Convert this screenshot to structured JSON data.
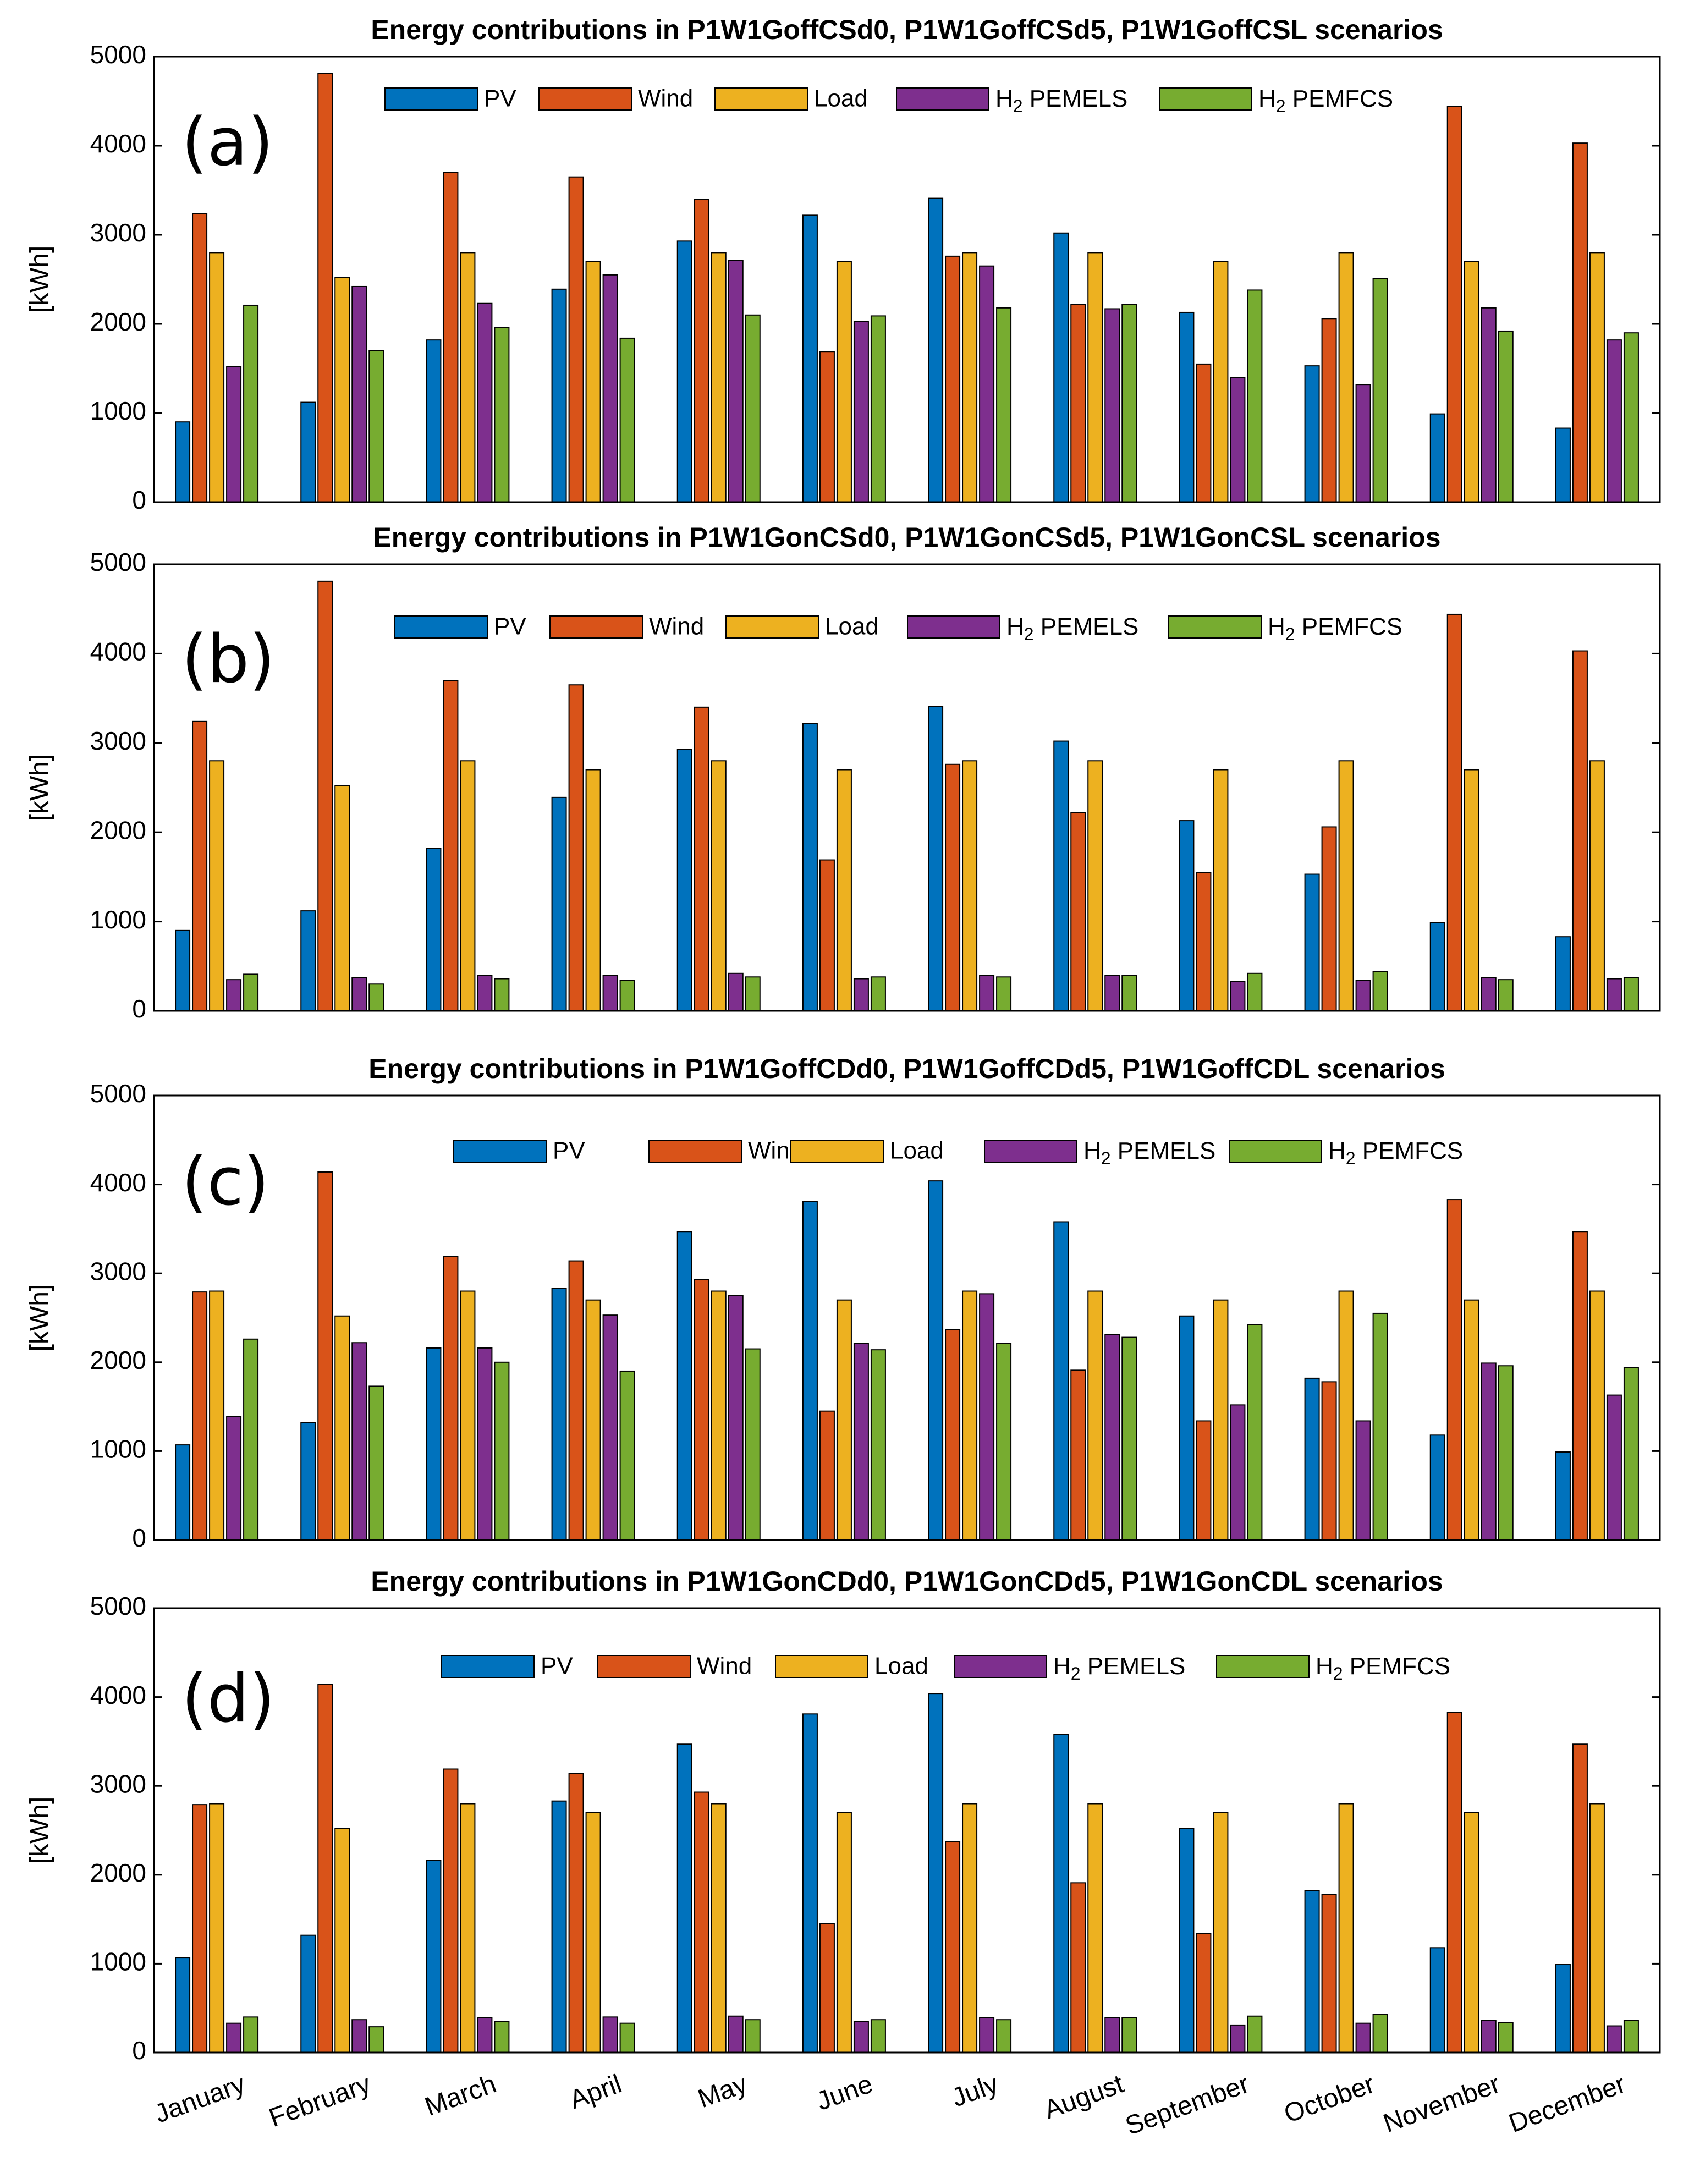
{
  "colors": {
    "PV": "#0072BD",
    "Wind": "#D95319",
    "Load": "#EDB120",
    "H2 PEMELS": "#7E2F8E",
    "H2 PEMFCS": "#77AC30"
  },
  "chart_data": [
    {
      "type": "bar",
      "panel": "(a)",
      "title": "Energy contributions in P1W1GoffCSd0, P1W1GoffCSd5, P1W1GoffCSL scenarios",
      "ylabel": "[kWh]",
      "ylim": [
        0,
        5000
      ],
      "yticks": [
        "0",
        "1000",
        "2000",
        "3000",
        "4000",
        "5000"
      ],
      "legend": "top",
      "categories": [
        "January",
        "February",
        "March",
        "April",
        "May",
        "June",
        "July",
        "August",
        "September",
        "October",
        "November",
        "December"
      ],
      "series": [
        {
          "name": "PV",
          "values": [
            900,
            1120,
            1820,
            2390,
            2930,
            3220,
            3410,
            3020,
            2130,
            1530,
            990,
            830
          ]
        },
        {
          "name": "Wind",
          "values": [
            3240,
            4810,
            3700,
            3650,
            3400,
            1690,
            2760,
            2220,
            1550,
            2060,
            4440,
            4030
          ]
        },
        {
          "name": "Load",
          "values": [
            2800,
            2520,
            2800,
            2700,
            2800,
            2700,
            2800,
            2800,
            2700,
            2800,
            2700,
            2800
          ]
        },
        {
          "name": "H2 PEMELS",
          "values": [
            1520,
            2420,
            2230,
            2550,
            2710,
            2030,
            2650,
            2170,
            1400,
            1320,
            2180,
            1820
          ]
        },
        {
          "name": "H2 PEMFCS",
          "values": [
            2210,
            1700,
            1960,
            1840,
            2100,
            2090,
            2180,
            2220,
            2380,
            2510,
            1920,
            1900
          ]
        }
      ]
    },
    {
      "type": "bar",
      "panel": "(b)",
      "title": "Energy contributions in P1W1GonCSd0, P1W1GonCSd5, P1W1GonCSL scenarios",
      "ylabel": "[kWh]",
      "ylim": [
        0,
        5000
      ],
      "yticks": [
        "0",
        "1000",
        "2000",
        "3000",
        "4000",
        "5000"
      ],
      "legend": "top",
      "categories": [
        "January",
        "February",
        "March",
        "April",
        "May",
        "June",
        "July",
        "August",
        "September",
        "October",
        "November",
        "December"
      ],
      "series": [
        {
          "name": "PV",
          "values": [
            900,
            1120,
            1820,
            2390,
            2930,
            3220,
            3410,
            3020,
            2130,
            1530,
            990,
            830
          ]
        },
        {
          "name": "Wind",
          "values": [
            3240,
            4810,
            3700,
            3650,
            3400,
            1690,
            2760,
            2220,
            1550,
            2060,
            4440,
            4030
          ]
        },
        {
          "name": "Load",
          "values": [
            2800,
            2520,
            2800,
            2700,
            2800,
            2700,
            2800,
            2800,
            2700,
            2800,
            2700,
            2800
          ]
        },
        {
          "name": "H2 PEMELS",
          "values": [
            350,
            370,
            400,
            400,
            420,
            360,
            400,
            400,
            330,
            340,
            370,
            360
          ]
        },
        {
          "name": "H2 PEMFCS",
          "values": [
            410,
            300,
            360,
            340,
            380,
            380,
            380,
            400,
            420,
            440,
            350,
            370
          ]
        }
      ]
    },
    {
      "type": "bar",
      "panel": "(c)",
      "title": "Energy contributions in P1W1GoffCDd0, P1W1GoffCDd5, P1W1GoffCDL scenarios",
      "ylabel": "[kWh]",
      "ylim": [
        0,
        5000
      ],
      "yticks": [
        "0",
        "1000",
        "2000",
        "3000",
        "4000",
        "5000"
      ],
      "legend": "top",
      "categories": [
        "January",
        "February",
        "March",
        "April",
        "May",
        "June",
        "July",
        "August",
        "September",
        "October",
        "November",
        "December"
      ],
      "series": [
        {
          "name": "PV",
          "values": [
            1070,
            1320,
            2160,
            2830,
            3470,
            3810,
            4040,
            3580,
            2520,
            1820,
            1180,
            990
          ]
        },
        {
          "name": "Wind",
          "values": [
            2790,
            4140,
            3190,
            3140,
            2930,
            1450,
            2370,
            1910,
            1340,
            1780,
            3830,
            3470
          ]
        },
        {
          "name": "Load",
          "values": [
            2800,
            2520,
            2800,
            2700,
            2800,
            2700,
            2800,
            2800,
            2700,
            2800,
            2700,
            2800
          ]
        },
        {
          "name": "H2 PEMELS",
          "values": [
            1390,
            2220,
            2160,
            2530,
            2750,
            2210,
            2770,
            2310,
            1520,
            1340,
            1990,
            1630
          ]
        },
        {
          "name": "H2 PEMFCS",
          "values": [
            2260,
            1730,
            2000,
            1900,
            2150,
            2140,
            2210,
            2280,
            2420,
            2550,
            1960,
            1940
          ]
        }
      ]
    },
    {
      "type": "bar",
      "panel": "(d)",
      "title": "Energy contributions in P1W1GonCDd0, P1W1GonCDd5, P1W1GonCDL scenarios",
      "ylabel": "[kWh]",
      "ylim": [
        0,
        5000
      ],
      "yticks": [
        "0",
        "1000",
        "2000",
        "3000",
        "4000",
        "5000"
      ],
      "legend": "top",
      "categories": [
        "January",
        "February",
        "March",
        "April",
        "May",
        "June",
        "July",
        "August",
        "September",
        "October",
        "November",
        "December"
      ],
      "series": [
        {
          "name": "PV",
          "values": [
            1070,
            1320,
            2160,
            2830,
            3470,
            3810,
            4040,
            3580,
            2520,
            1820,
            1180,
            990
          ]
        },
        {
          "name": "Wind",
          "values": [
            2790,
            4140,
            3190,
            3140,
            2930,
            1450,
            2370,
            1910,
            1340,
            1780,
            3830,
            3470
          ]
        },
        {
          "name": "Load",
          "values": [
            2800,
            2520,
            2800,
            2700,
            2800,
            2700,
            2800,
            2800,
            2700,
            2800,
            2700,
            2800
          ]
        },
        {
          "name": "H2 PEMELS",
          "values": [
            330,
            370,
            390,
            400,
            410,
            350,
            390,
            390,
            310,
            330,
            360,
            300
          ]
        },
        {
          "name": "H2 PEMFCS",
          "values": [
            400,
            290,
            350,
            330,
            370,
            370,
            370,
            390,
            410,
            430,
            340,
            360
          ]
        }
      ]
    }
  ]
}
